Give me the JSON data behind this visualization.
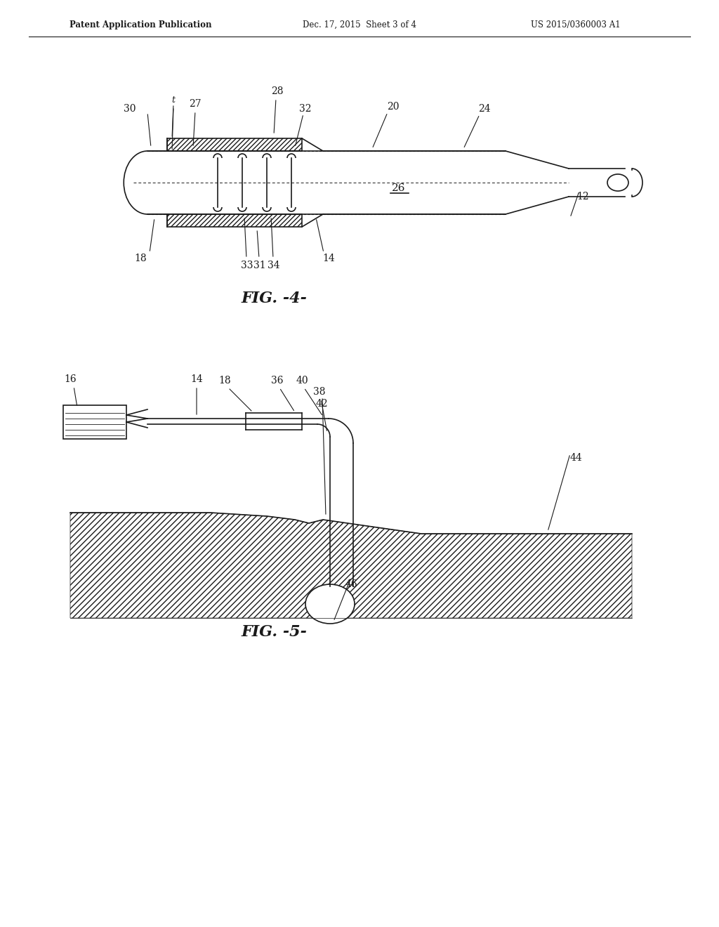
{
  "bg_color": "#ffffff",
  "header_left": "Patent Application Publication",
  "header_center": "Dec. 17, 2015  Sheet 3 of 4",
  "header_right": "US 2015/0360003 A1",
  "fig4_label": "FIG. -4-",
  "fig5_label": "FIG. -5-",
  "line_color": "#1a1a1a",
  "hatch_color": "#1a1a1a"
}
